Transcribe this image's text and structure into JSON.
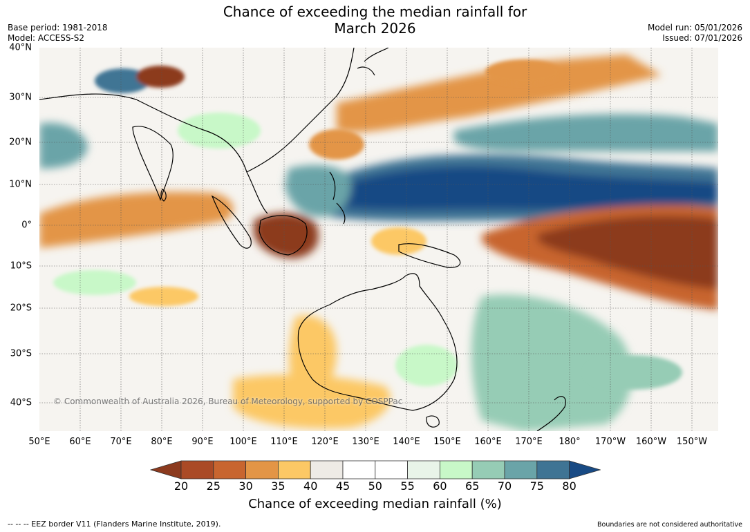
{
  "header": {
    "title_line1": "Chance of exceeding the median rainfall for",
    "title_line2": "March 2026",
    "base_period": "Base period: 1981-2018",
    "model": "Model: ACCESS-S2",
    "model_run": "Model run: 05/01/2026",
    "issued": "Issued: 07/01/2026"
  },
  "map": {
    "watermark": "© Commonwealth of Australia 2026, Bureau of Meteorology, supported by COSPPac",
    "lat_labels": [
      "40°N",
      "30°N",
      "20°N",
      "10°N",
      "0°",
      "10°S",
      "20°S",
      "30°S",
      "40°S"
    ],
    "lon_labels": [
      "50°E",
      "60°E",
      "70°E",
      "80°E",
      "90°E",
      "100°E",
      "110°E",
      "120°E",
      "130°E",
      "140°E",
      "150°E",
      "160°E",
      "170°E",
      "180°",
      "170°W",
      "160°W",
      "150°W"
    ],
    "colors": {
      "20": "#8c3a1e",
      "25": "#aa4a26",
      "30": "#c8652f",
      "35": "#e39546",
      "40": "#fcc865",
      "45": "#eeebe6",
      "50": "#ffffff",
      "55": "#ffffff",
      "60": "#e9f4e9",
      "65": "#c8f8c8",
      "70": "#96ccb5",
      "75": "#6aa4a8",
      "80": "#3f7494",
      "85": "#184a84"
    }
  },
  "colorbar": {
    "ticks": [
      "20",
      "25",
      "30",
      "35",
      "40",
      "45",
      "50",
      "55",
      "60",
      "65",
      "70",
      "75",
      "80"
    ],
    "label": "Chance of exceeding median rainfall (%)"
  },
  "footer": {
    "eez_note": "--  --  -- EEZ border V11 (Flanders Marine Institute, 2019).",
    "disclaimer": "Boundaries are not considered authoritative"
  }
}
